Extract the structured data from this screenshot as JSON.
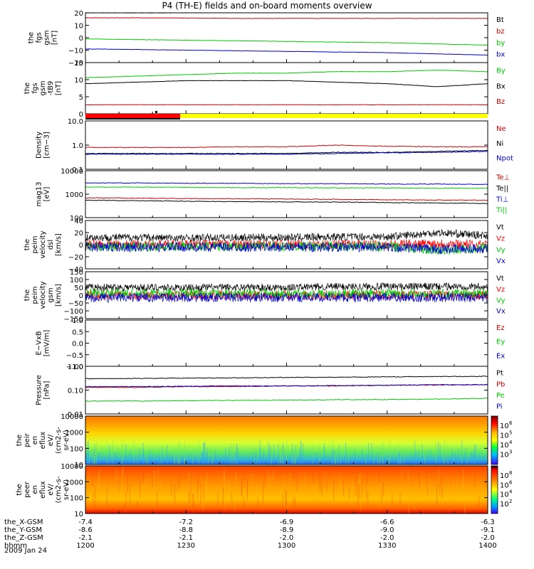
{
  "title": "P4 (TH-E) fields and on-board moments overview",
  "time_axis": {
    "rows": [
      {
        "label": "the_X-GSM",
        "values": [
          "-7.4",
          "-7.2",
          "-6.9",
          "-6.6",
          "-6.3"
        ]
      },
      {
        "label": "the_Y-GSM",
        "values": [
          "-8.6",
          "-8.8",
          "-8.9",
          "-9.0",
          "-9.1"
        ]
      },
      {
        "label": "the_Z-GSM",
        "values": [
          "-2.1",
          "-2.1",
          "-2.0",
          "-2.0",
          "-2.0"
        ]
      },
      {
        "label": "hhmm",
        "values": [
          "1200",
          "1230",
          "1300",
          "1330",
          "1400"
        ]
      }
    ],
    "date": "2009 Jan 24"
  },
  "colorbar": {
    "eflux_ion_labels": [
      "10",
      "10",
      "10",
      "10"
    ],
    "eflux_ion_exponents": [
      "6",
      "5",
      "4",
      "3"
    ],
    "eflux_ele_labels": [
      "10",
      "10",
      "10",
      "10"
    ],
    "eflux_ele_exponents": [
      "8",
      "6",
      "4",
      "2"
    ]
  },
  "chart_data": [
    {
      "type": "line",
      "ylabel": [
        "the",
        "fgs",
        "gsm",
        "[nT]"
      ],
      "ylim": [
        -20,
        20
      ],
      "ticks": [
        "20",
        "10",
        "0",
        "−10",
        "−20"
      ],
      "x": [
        1200,
        1215,
        1230,
        1245,
        1300,
        1315,
        1330,
        1345,
        1400
      ],
      "series": [
        {
          "name": "Bt",
          "color": "#000000",
          "values": [
            20,
            20,
            20,
            20.5,
            21,
            21,
            21.5,
            22,
            22
          ]
        },
        {
          "name": "bz",
          "color": "#cc0000",
          "values": [
            16,
            16,
            15.8,
            15.5,
            15.5,
            15.5,
            15.5,
            15.5,
            15.5
          ]
        },
        {
          "name": "by",
          "color": "#00cc00",
          "values": [
            -1,
            -1.5,
            -2,
            -2.5,
            -3,
            -3.5,
            -4,
            -5,
            -6
          ]
        },
        {
          "name": "bx",
          "color": "#0000cc",
          "values": [
            -9,
            -9.5,
            -10,
            -10.5,
            -11,
            -11.5,
            -12,
            -13,
            -14
          ]
        }
      ]
    },
    {
      "type": "line",
      "ylabel": [
        "the",
        "fgs",
        "gsm",
        "-tB9",
        "[nT]"
      ],
      "ylim": [
        -2,
        15
      ],
      "ticks": [
        "15",
        "10",
        "5",
        "0"
      ],
      "x": [
        1200,
        1215,
        1230,
        1245,
        1300,
        1315,
        1330,
        1345,
        1400
      ],
      "series": [
        {
          "name": "By",
          "color": "#00cc00",
          "values": [
            10,
            10.5,
            11,
            11.5,
            11.5,
            12,
            12,
            12.5,
            12
          ]
        },
        {
          "name": "Bx",
          "color": "#000000",
          "values": [
            8,
            8.5,
            9,
            9,
            9,
            8.5,
            8,
            7,
            8
          ]
        },
        {
          "name": "Bz",
          "color": "#cc0000",
          "values": [
            1,
            1,
            1,
            1,
            1,
            1,
            1,
            1,
            1
          ]
        }
      ]
    },
    {
      "type": "line",
      "log": true,
      "ylabel": [
        "Density",
        "[cm−3]"
      ],
      "ylim": [
        0.1,
        10
      ],
      "ticks": [
        "10.0",
        "1.0",
        "0.1"
      ],
      "x": [
        1200,
        1215,
        1230,
        1245,
        1300,
        1315,
        1330,
        1345,
        1400
      ],
      "series": [
        {
          "name": "Ne",
          "color": "#cc0000",
          "values": [
            0.8,
            0.8,
            0.8,
            0.85,
            0.85,
            1.0,
            0.9,
            0.85,
            0.85
          ]
        },
        {
          "name": "Ni",
          "color": "#000000",
          "values": [
            0.45,
            0.45,
            0.45,
            0.45,
            0.45,
            0.5,
            0.5,
            0.55,
            0.6
          ]
        },
        {
          "name": "Npot",
          "color": "#0000cc",
          "values": [
            0.42,
            0.42,
            0.42,
            0.42,
            0.42,
            0.45,
            0.48,
            0.5,
            0.55
          ]
        }
      ]
    },
    {
      "type": "line",
      "log": true,
      "ylabel": [
        "mag13",
        "[eV]"
      ],
      "ylim": [
        100,
        10000
      ],
      "ticks": [
        "10000",
        "1000",
        "100"
      ],
      "x": [
        1200,
        1215,
        1230,
        1245,
        1300,
        1315,
        1330,
        1345,
        1400
      ],
      "series": [
        {
          "name": "Te⊥",
          "color": "#cc0000",
          "values": [
            700,
            680,
            650,
            640,
            620,
            600,
            580,
            560,
            550
          ]
        },
        {
          "name": "Te||",
          "color": "#000000",
          "values": [
            550,
            530,
            500,
            480,
            470,
            460,
            440,
            420,
            400
          ]
        },
        {
          "name": "Ti⊥",
          "color": "#0000cc",
          "values": [
            3000,
            3000,
            2900,
            2900,
            2800,
            2800,
            2700,
            2700,
            2600
          ]
        },
        {
          "name": "Ti||",
          "color": "#00cc00",
          "values": [
            2000,
            2000,
            1950,
            1900,
            1900,
            1850,
            1850,
            1800,
            1800
          ]
        }
      ]
    },
    {
      "type": "line",
      "noisy": true,
      "ylabel": [
        "the",
        "peim",
        "velocity",
        "dsl",
        "[km/s]"
      ],
      "ylim": [
        -40,
        40
      ],
      "ticks": [
        "40",
        "20",
        "0",
        "−20",
        "−40"
      ],
      "x": [
        1200,
        1215,
        1230,
        1245,
        1300,
        1315,
        1330,
        1345,
        1400
      ],
      "series": [
        {
          "name": "Vt",
          "color": "#000000",
          "values": [
            12,
            12,
            11,
            12,
            12,
            13,
            13,
            20,
            15
          ]
        },
        {
          "name": "Vz",
          "color": "#ff0000",
          "values": [
            0,
            0,
            0,
            0,
            0,
            0,
            0,
            2,
            0
          ]
        },
        {
          "name": "Vy",
          "color": "#00cc00",
          "values": [
            -3,
            -3,
            -3,
            -3,
            -3,
            -3,
            -3,
            -10,
            -5
          ]
        },
        {
          "name": "Vx",
          "color": "#0000cc",
          "values": [
            -4,
            -4,
            -4,
            -4,
            -4,
            -4,
            -4,
            -8,
            -6
          ]
        }
      ]
    },
    {
      "type": "line",
      "noisy": true,
      "ylabel": [
        "the",
        "peim",
        "velocity",
        "gsm",
        "[km/s]"
      ],
      "ylim": [
        -150,
        150
      ],
      "ticks": [
        "150",
        "100",
        "50",
        "0",
        "−50",
        "−100",
        "−150"
      ],
      "x": [
        1200,
        1215,
        1230,
        1245,
        1300,
        1315,
        1330,
        1345,
        1400
      ],
      "series": [
        {
          "name": "Vt",
          "color": "#000000",
          "values": [
            50,
            50,
            48,
            50,
            50,
            55,
            55,
            55,
            55
          ]
        },
        {
          "name": "Vz",
          "color": "#ff0000",
          "values": [
            0,
            0,
            0,
            0,
            0,
            0,
            0,
            0,
            0
          ]
        },
        {
          "name": "Vy",
          "color": "#00cc00",
          "values": [
            10,
            10,
            10,
            10,
            10,
            10,
            10,
            10,
            10
          ]
        },
        {
          "name": "Vx",
          "color": "#0000cc",
          "values": [
            -15,
            -15,
            -15,
            -15,
            -15,
            -15,
            -15,
            -15,
            -15
          ]
        }
      ]
    },
    {
      "type": "line",
      "ylabel": [
        "E−VxB",
        "[mV/m]"
      ],
      "ylim": [
        -1,
        1
      ],
      "ticks": [
        "1.0",
        "0.5",
        "0.0",
        "−0.5",
        "−1.0"
      ],
      "x": [],
      "series": [
        {
          "name": "Ez",
          "color": "#cc0000",
          "values": []
        },
        {
          "name": "Ey",
          "color": "#00cc00",
          "values": []
        },
        {
          "name": "Ex",
          "color": "#0000cc",
          "values": []
        }
      ]
    },
    {
      "type": "line",
      "log": true,
      "ylabel": [
        "Pressure",
        "[nPa]"
      ],
      "ylim": [
        0.01,
        1
      ],
      "ticks": [
        "1.00",
        "0.10",
        "0.01"
      ],
      "x": [
        1200,
        1215,
        1230,
        1245,
        1300,
        1315,
        1330,
        1345,
        1400
      ],
      "series": [
        {
          "name": "Pt",
          "color": "#000000",
          "values": [
            0.3,
            0.31,
            0.32,
            0.33,
            0.34,
            0.35,
            0.36,
            0.37,
            0.38
          ]
        },
        {
          "name": "Pb",
          "color": "#cc0000",
          "values": [
            0.13,
            0.13,
            0.14,
            0.14,
            0.15,
            0.15,
            0.16,
            0.17,
            0.17
          ]
        },
        {
          "name": "Pe",
          "color": "#00cc00",
          "values": [
            0.035,
            0.035,
            0.036,
            0.037,
            0.038,
            0.04,
            0.04,
            0.042,
            0.045
          ]
        },
        {
          "name": "Pi",
          "color": "#0000cc",
          "values": [
            0.14,
            0.14,
            0.145,
            0.15,
            0.15,
            0.155,
            0.16,
            0.165,
            0.17
          ]
        }
      ]
    },
    {
      "type": "heatmap",
      "ylabel": [
        "the",
        "peir",
        "en",
        "eflux",
        "eV/",
        "(cm2-s-",
        "sr-eV)"
      ],
      "ylim": [
        10,
        20000
      ],
      "ticks": [
        "10000",
        "1000",
        "100",
        "10"
      ]
    },
    {
      "type": "heatmap",
      "ylabel": [
        "the",
        "peer",
        "en",
        "eflux",
        "eV/",
        "(cm2-s-",
        "sr-eV)"
      ],
      "ylim": [
        10,
        20000
      ],
      "ticks": [
        "10000",
        "1000",
        "100",
        "10"
      ]
    }
  ]
}
